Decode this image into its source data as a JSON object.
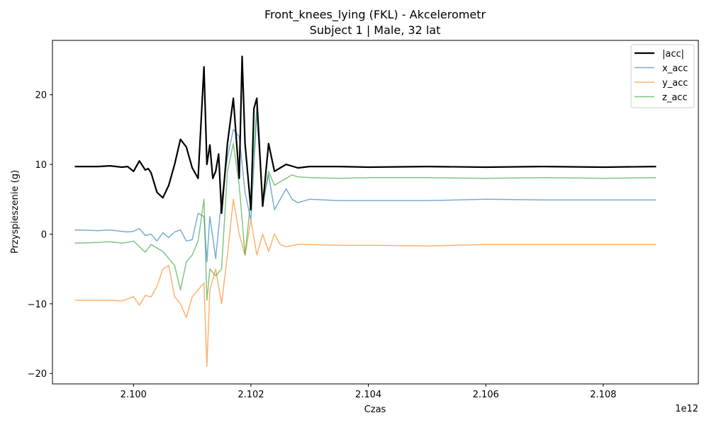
{
  "chart_data": {
    "type": "line",
    "title": "Front_knees_lying (FKL) - Akcelerometr",
    "subtitle": "Subject 1 | Male, 32 lat",
    "xlabel": "Czas",
    "ylabel": "Przyspieszenie (g)",
    "x_offset_label": "1e12",
    "xlim": [
      2.09862,
      2.10962
    ],
    "ylim": [
      -21.5,
      27.8
    ],
    "x_ticks": [
      2.1,
      2.102,
      2.104,
      2.106,
      2.108
    ],
    "x_tick_labels": [
      "2.100",
      "2.102",
      "2.104",
      "2.106",
      "2.108"
    ],
    "y_ticks": [
      -20,
      -10,
      0,
      10,
      20
    ],
    "y_tick_labels": [
      "−20",
      "−10",
      "0",
      "10",
      "20"
    ],
    "grid": false,
    "legend_position": "top-right",
    "series": [
      {
        "name": "|acc|",
        "color": "#000000",
        "x": [
          2.099,
          2.0994,
          2.0996,
          2.0998,
          2.0999,
          2.1,
          2.1001,
          2.1002,
          2.10025,
          2.1003,
          2.1004,
          2.1005,
          2.1006,
          2.1007,
          2.1008,
          2.1009,
          2.101,
          2.1011,
          2.1012,
          2.10125,
          2.1013,
          2.10135,
          2.1014,
          2.10145,
          2.1015,
          2.1016,
          2.1017,
          2.1018,
          2.10185,
          2.1019,
          2.102,
          2.10205,
          2.1021,
          2.1022,
          2.1023,
          2.1024,
          2.1025,
          2.1026,
          2.1028,
          2.103,
          2.1035,
          2.104,
          2.105,
          2.106,
          2.107,
          2.108,
          2.1089
        ],
        "values": [
          9.7,
          9.7,
          9.8,
          9.6,
          9.7,
          9.0,
          10.5,
          9.2,
          9.4,
          8.8,
          6.0,
          5.2,
          7.0,
          10.0,
          13.6,
          12.5,
          9.5,
          8.0,
          24.0,
          10.0,
          12.8,
          8.0,
          9.0,
          11.5,
          3.0,
          13.0,
          19.5,
          8.0,
          25.5,
          13.0,
          3.5,
          18.0,
          19.5,
          4.0,
          13.0,
          9.0,
          9.5,
          10.0,
          9.5,
          9.7,
          9.7,
          9.6,
          9.7,
          9.6,
          9.7,
          9.6,
          9.7
        ]
      },
      {
        "name": "x_acc",
        "color": "#1f77b4",
        "x": [
          2.099,
          2.0994,
          2.0996,
          2.0998,
          2.0999,
          2.1,
          2.1001,
          2.1002,
          2.1003,
          2.1004,
          2.1005,
          2.1006,
          2.1007,
          2.1008,
          2.1009,
          2.101,
          2.1011,
          2.1012,
          2.10125,
          2.1013,
          2.1014,
          2.1015,
          2.1016,
          2.1017,
          2.1018,
          2.1019,
          2.102,
          2.1021,
          2.1022,
          2.1023,
          2.1024,
          2.1025,
          2.1026,
          2.1027,
          2.1028,
          2.103,
          2.1035,
          2.104,
          2.105,
          2.106,
          2.107,
          2.108,
          2.1089
        ],
        "values": [
          0.6,
          0.5,
          0.6,
          0.4,
          0.3,
          0.4,
          0.8,
          -0.2,
          0.0,
          -1.0,
          0.2,
          -0.5,
          0.3,
          0.6,
          -1.0,
          -0.8,
          3.0,
          2.5,
          -4.0,
          2.5,
          -3.5,
          5.0,
          11.0,
          15.0,
          14.0,
          6.0,
          2.0,
          17.5,
          4.5,
          8.5,
          3.5,
          5.0,
          6.5,
          5.0,
          4.5,
          5.0,
          4.8,
          4.8,
          4.8,
          5.0,
          4.9,
          4.9,
          4.9
        ]
      },
      {
        "name": "y_acc",
        "color": "#ff7f0e",
        "x": [
          2.099,
          2.0994,
          2.0996,
          2.0998,
          2.0999,
          2.1,
          2.1001,
          2.1002,
          2.1003,
          2.1004,
          2.1005,
          2.1006,
          2.1007,
          2.1008,
          2.1009,
          2.101,
          2.1011,
          2.1012,
          2.10125,
          2.1013,
          2.1014,
          2.1015,
          2.1016,
          2.1017,
          2.1018,
          2.1019,
          2.102,
          2.1021,
          2.1022,
          2.1023,
          2.1024,
          2.1025,
          2.1026,
          2.1028,
          2.103,
          2.1035,
          2.104,
          2.105,
          2.106,
          2.107,
          2.108,
          2.1089
        ],
        "values": [
          -9.5,
          -9.5,
          -9.5,
          -9.6,
          -9.3,
          -9.0,
          -10.2,
          -8.8,
          -9.0,
          -7.5,
          -5.0,
          -4.5,
          -9.0,
          -10.0,
          -12.0,
          -9.0,
          -8.0,
          -7.0,
          -19.0,
          -8.0,
          -5.0,
          -10.0,
          -3.0,
          5.0,
          0.0,
          -3.0,
          2.0,
          -3.0,
          0.0,
          -2.5,
          0.0,
          -1.5,
          -1.8,
          -1.5,
          -1.5,
          -1.6,
          -1.6,
          -1.7,
          -1.5,
          -1.5,
          -1.5,
          -1.5
        ]
      },
      {
        "name": "z_acc",
        "color": "#2ca02c",
        "x": [
          2.099,
          2.0994,
          2.0996,
          2.0998,
          2.0999,
          2.1,
          2.1001,
          2.1002,
          2.1003,
          2.1004,
          2.1005,
          2.1006,
          2.1007,
          2.1008,
          2.1009,
          2.101,
          2.1011,
          2.1012,
          2.10125,
          2.1013,
          2.1014,
          2.1015,
          2.1016,
          2.1017,
          2.1018,
          2.1019,
          2.102,
          2.1021,
          2.1022,
          2.1023,
          2.1024,
          2.1025,
          2.1026,
          2.1027,
          2.1028,
          2.103,
          2.1035,
          2.104,
          2.105,
          2.106,
          2.107,
          2.108,
          2.1089
        ],
        "values": [
          -1.3,
          -1.2,
          -1.1,
          -1.3,
          -1.2,
          -1.0,
          -1.8,
          -2.6,
          -1.5,
          -2.0,
          -2.5,
          -3.5,
          -4.5,
          -8.0,
          -4.0,
          -3.0,
          -1.0,
          5.0,
          -9.5,
          -5.0,
          -6.0,
          -5.0,
          9.0,
          13.0,
          7.0,
          -3.0,
          5.0,
          18.5,
          4.0,
          9.0,
          7.0,
          7.5,
          8.0,
          8.5,
          8.2,
          8.1,
          8.0,
          8.1,
          8.1,
          8.0,
          8.1,
          8.0,
          8.1
        ]
      }
    ]
  }
}
